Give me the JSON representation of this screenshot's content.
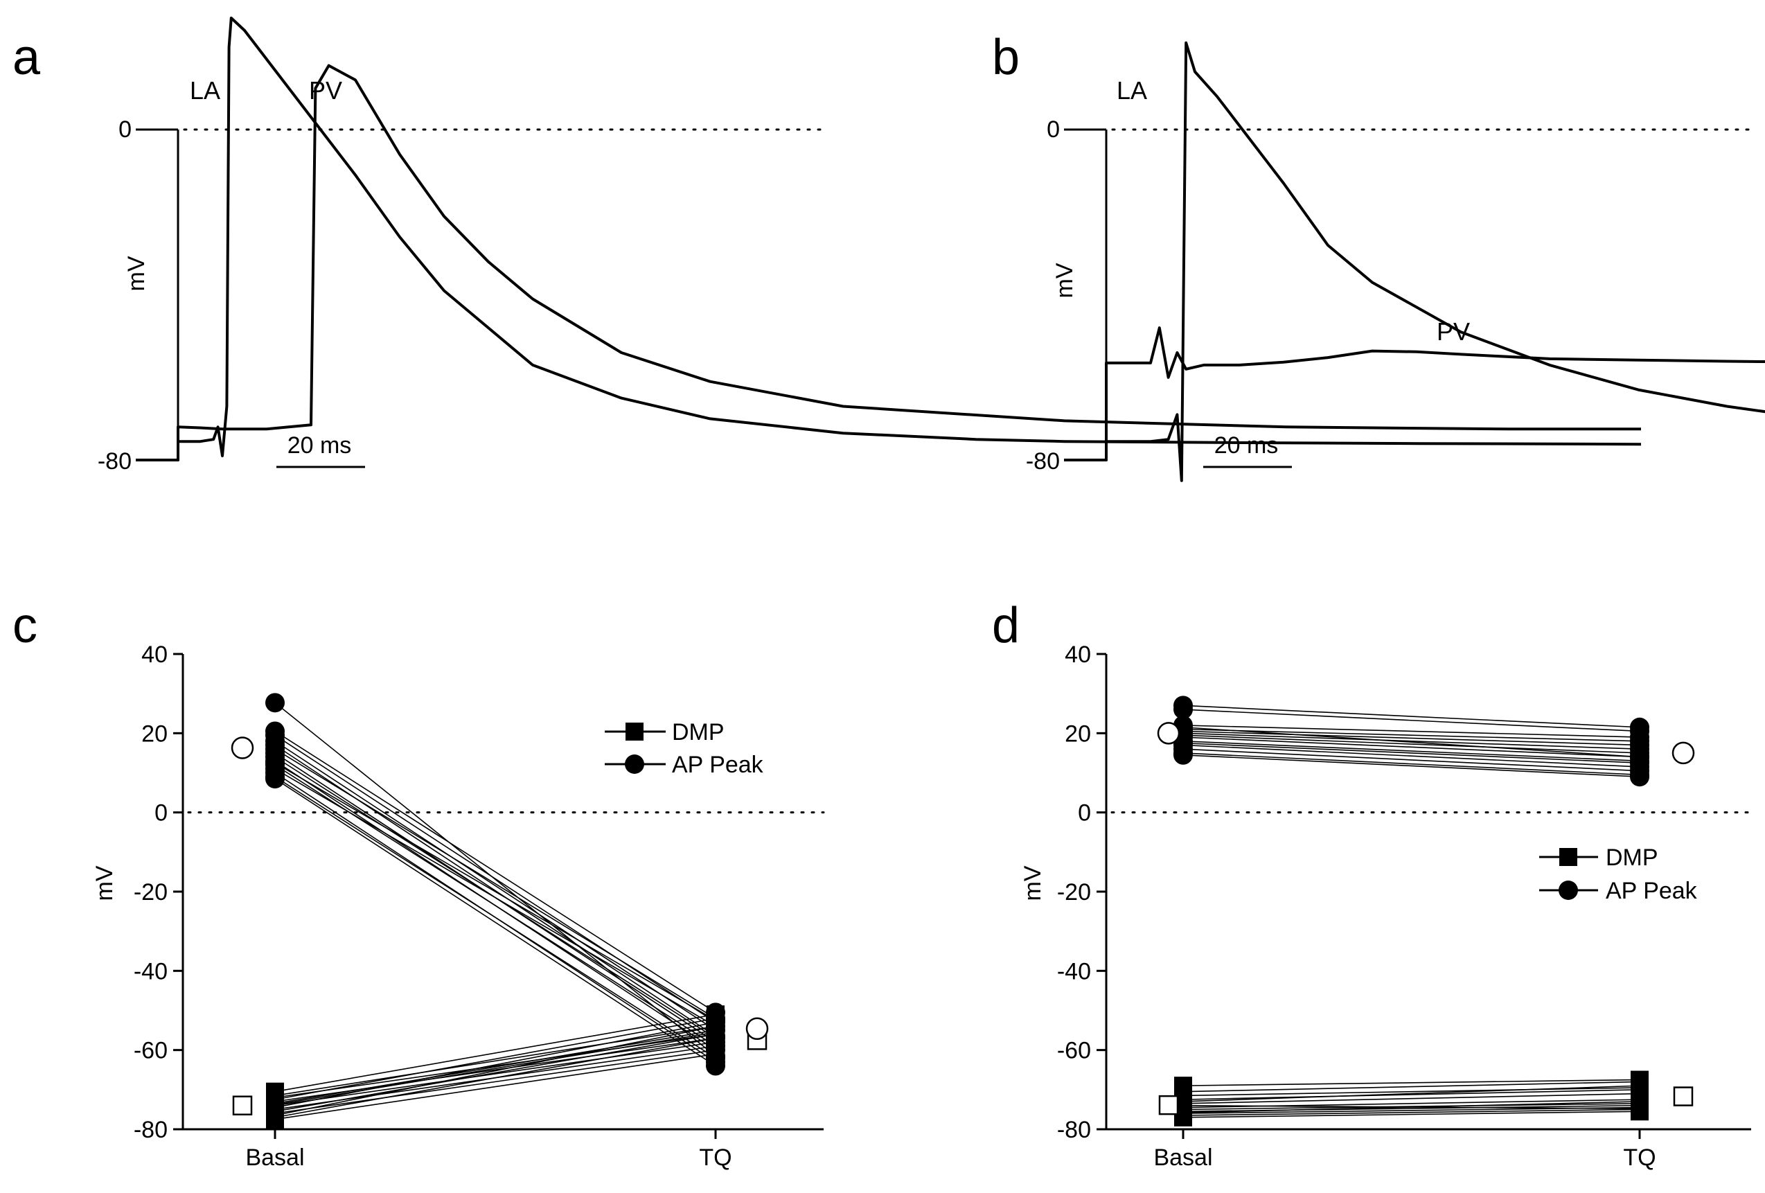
{
  "chart_data": [
    {
      "panel": "a",
      "type": "line",
      "ylabel": "mV",
      "ytick_labels": [
        "0",
        "-80"
      ],
      "ylim": [
        -80,
        0
      ],
      "scale_bar": "20 ms",
      "zero_line": "dotted",
      "series": [
        {
          "name": "LA",
          "x_ms": [
            -50,
            0,
            0,
            5,
            8,
            9,
            10,
            11,
            11.5,
            12,
            15,
            20,
            30,
            40,
            50,
            60,
            80,
            100,
            120,
            150,
            180,
            200,
            240,
            280,
            310,
            330
          ],
          "y_mV": [
            -80,
            -80,
            -75.5,
            -75.5,
            -75,
            -72,
            -79,
            -67,
            20,
            27,
            24,
            17,
            3,
            -11,
            -26,
            -39,
            -57,
            -65,
            -70,
            -73.5,
            -75,
            -75.5,
            -75.8,
            -76,
            -76.1,
            -76.2
          ]
        },
        {
          "name": "PV",
          "x_ms": [
            -50,
            0,
            0,
            5,
            10,
            20,
            30,
            31,
            34,
            40,
            50,
            60,
            70,
            80,
            100,
            120,
            150,
            200,
            250,
            300,
            330
          ],
          "y_mV": [
            -80,
            -80,
            -72,
            -72.2,
            -72.5,
            -72.5,
            -71.5,
            10,
            15.5,
            12,
            -6,
            -21,
            -32,
            -41,
            -54,
            -61,
            -67,
            -70.5,
            -72,
            -72.5,
            -72.5
          ]
        }
      ]
    },
    {
      "panel": "b",
      "type": "line",
      "ylabel": "mV",
      "ytick_labels": [
        "0",
        "-80"
      ],
      "ylim": [
        -80,
        0
      ],
      "scale_bar": "20 ms",
      "zero_line": "dotted",
      "series": [
        {
          "name": "LA",
          "x_ms": [
            -50,
            0,
            0,
            10,
            14,
            16,
            17,
            18,
            20,
            25,
            30,
            40,
            50,
            60,
            80,
            100,
            120,
            140,
            160,
            180,
            200,
            240,
            280,
            310,
            330
          ],
          "y_mV": [
            -80,
            -80,
            -75.5,
            -75.5,
            -75,
            -69,
            -85,
            21,
            14,
            8,
            1,
            -13,
            -28,
            -37,
            -49,
            -57,
            -63,
            -67,
            -70,
            -72,
            -73,
            -74.5,
            -75,
            -75,
            -75
          ]
        },
        {
          "name": "PV",
          "x_ms": [
            -50,
            0,
            0,
            5,
            10,
            12,
            14,
            16,
            18,
            22,
            30,
            40,
            50,
            60,
            70,
            80,
            100,
            120,
            140,
            160,
            200,
            240,
            280,
            330
          ],
          "y_mV": [
            -80,
            -80,
            -56.5,
            -56.5,
            -56.5,
            -48,
            -60,
            -54,
            -58,
            -57,
            -57,
            -56.3,
            -55.2,
            -53.6,
            -53.8,
            -54.4,
            -55.5,
            -55.8,
            -56.1,
            -56.3,
            -56.5,
            -56.6,
            -56.7,
            -56.7
          ]
        }
      ]
    },
    {
      "panel": "c",
      "type": "scatter",
      "ylabel": "mV",
      "ylim": [
        -80,
        40
      ],
      "yticks": [
        40,
        20,
        0,
        -20,
        -40,
        -60,
        -80
      ],
      "categories": [
        "Basal",
        "TQ"
      ],
      "legend": [
        "DMP",
        "AP Peak"
      ],
      "legend_position": "top-right",
      "zero_line": "dotted",
      "series": [
        {
          "name": "DMP",
          "pairs": [
            [
              -70.5,
              -51
            ],
            [
              -71.5,
              -54
            ],
            [
              -72,
              -56
            ],
            [
              -72.5,
              -52
            ],
            [
              -73,
              -57
            ],
            [
              -73.5,
              -55
            ],
            [
              -74,
              -58
            ],
            [
              -74.5,
              -53
            ],
            [
              -75,
              -59
            ],
            [
              -75.5,
              -56
            ],
            [
              -76,
              -60
            ],
            [
              -76.5,
              -54
            ],
            [
              -77,
              -57
            ],
            [
              -77.5,
              -61
            ],
            [
              -73.8,
              -55.5
            ]
          ],
          "mean": [
            -74,
            -57.5
          ]
        },
        {
          "name": "AP Peak",
          "pairs": [
            [
              27.7,
              -61.5
            ],
            [
              20.5,
              -50.5
            ],
            [
              19.5,
              -53
            ],
            [
              18,
              -55
            ],
            [
              17,
              -56.5
            ],
            [
              16,
              -52
            ],
            [
              15,
              -58
            ],
            [
              14,
              -57
            ],
            [
              13,
              -60
            ],
            [
              12,
              -59
            ],
            [
              11,
              -54
            ],
            [
              10,
              -63
            ],
            [
              9,
              -62
            ],
            [
              8.5,
              -64
            ],
            [
              12.5,
              -52.5
            ]
          ],
          "mean": [
            16.3,
            -54.6
          ]
        }
      ]
    },
    {
      "panel": "d",
      "type": "scatter",
      "ylabel": "mV",
      "ylim": [
        -80,
        40
      ],
      "yticks": [
        40,
        20,
        0,
        -20,
        -40,
        -60,
        -80
      ],
      "categories": [
        "Basal",
        "TQ"
      ],
      "legend": [
        "DMP",
        "AP Peak"
      ],
      "legend_position": "center-right",
      "zero_line": "dotted",
      "series": [
        {
          "name": "DMP",
          "pairs": [
            [
              -69,
              -67.5
            ],
            [
              -70.5,
              -68
            ],
            [
              -71.5,
              -69.5
            ],
            [
              -72.5,
              -70
            ],
            [
              -73.5,
              -71
            ],
            [
              -74.5,
              -72.5
            ],
            [
              -75,
              -73.5
            ],
            [
              -75.5,
              -74
            ],
            [
              -76,
              -74.5
            ],
            [
              -76.5,
              -75
            ],
            [
              -77,
              -75.5
            ],
            [
              -73,
              -69
            ],
            [
              -74,
              -74.8
            ],
            [
              -75.8,
              -73
            ]
          ],
          "mean": [
            -73.9,
            -71.7
          ]
        },
        {
          "name": "AP Peak",
          "pairs": [
            [
              27,
              21.5
            ],
            [
              26,
              20.5
            ],
            [
              22,
              19
            ],
            [
              21,
              18
            ],
            [
              20.5,
              17
            ],
            [
              20,
              16
            ],
            [
              19.5,
              15
            ],
            [
              19,
              14
            ],
            [
              18,
              13
            ],
            [
              17.5,
              12.5
            ],
            [
              17,
              11.5
            ],
            [
              16,
              10.5
            ],
            [
              15,
              9.5
            ],
            [
              14.5,
              9
            ],
            [
              21.5,
              14
            ]
          ],
          "mean": [
            20,
            15
          ]
        }
      ]
    }
  ],
  "panel_labels": [
    "a",
    "b",
    "c",
    "d"
  ]
}
